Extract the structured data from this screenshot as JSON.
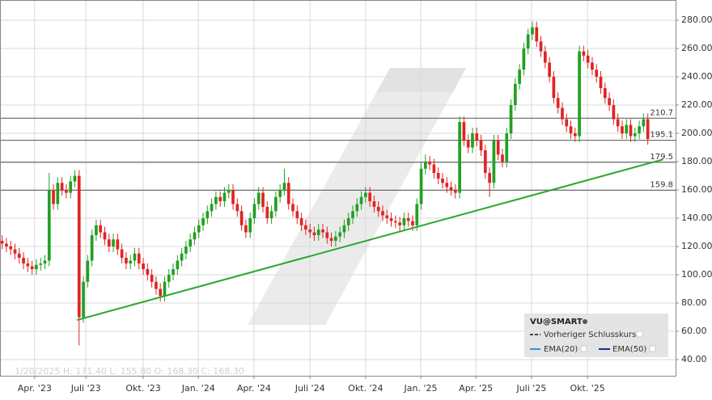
{
  "chart_data": {
    "type": "candlestick",
    "up_color": "#22a022",
    "down_color": "#e02424",
    "open": [
      124,
      122,
      120,
      118,
      115,
      112,
      108,
      106,
      104,
      107,
      108,
      110,
      160,
      150,
      165,
      160,
      158,
      166,
      170,
      70,
      95,
      110,
      128,
      135,
      130,
      125,
      120,
      125,
      118,
      112,
      108,
      110,
      115,
      108,
      104,
      100,
      95,
      90,
      85,
      95,
      100,
      104,
      110,
      115,
      120,
      125,
      130,
      135,
      140,
      145,
      150,
      155,
      152,
      158,
      160,
      150,
      145,
      135,
      130,
      140,
      150,
      158,
      148,
      140,
      145,
      155,
      160,
      165,
      150,
      145,
      140,
      135,
      132,
      130,
      128,
      132,
      130,
      126,
      124,
      127,
      130,
      135,
      140,
      145,
      150,
      155,
      158,
      152,
      148,
      145,
      142,
      140,
      138,
      137,
      135,
      140,
      138,
      135,
      150,
      175,
      180,
      178,
      172,
      168,
      165,
      162,
      160,
      158,
      208,
      195,
      190,
      200,
      195,
      188,
      172,
      165,
      195,
      185,
      180,
      200,
      220,
      235,
      245,
      260,
      270,
      275,
      265,
      258,
      250,
      240,
      225,
      218,
      210,
      205,
      200,
      198,
      258,
      255,
      250,
      245,
      240,
      232,
      225,
      220,
      210,
      205,
      200,
      206,
      198,
      200,
      205,
      210
    ],
    "high": [
      128,
      126,
      124,
      122,
      119,
      116,
      112,
      110,
      111,
      112,
      114,
      172,
      164,
      169,
      169,
      164,
      170,
      174,
      174,
      99,
      114,
      132,
      139,
      139,
      134,
      129,
      129,
      129,
      122,
      116,
      114,
      119,
      119,
      112,
      108,
      104,
      99,
      94,
      99,
      104,
      108,
      114,
      119,
      124,
      129,
      134,
      139,
      144,
      149,
      154,
      159,
      159,
      162,
      164,
      164,
      154,
      149,
      139,
      144,
      154,
      162,
      162,
      152,
      149,
      159,
      164,
      175,
      169,
      154,
      149,
      144,
      139,
      136,
      134,
      136,
      136,
      134,
      130,
      131,
      134,
      139,
      144,
      149,
      154,
      159,
      162,
      162,
      156,
      152,
      149,
      146,
      144,
      142,
      141,
      144,
      144,
      142,
      154,
      179,
      185,
      184,
      182,
      176,
      172,
      169,
      166,
      164,
      212,
      212,
      199,
      204,
      204,
      199,
      192,
      176,
      199,
      199,
      189,
      204,
      224,
      239,
      249,
      264,
      274,
      279,
      279,
      269,
      262,
      254,
      244,
      229,
      222,
      214,
      209,
      204,
      262,
      262,
      259,
      254,
      249,
      244,
      236,
      229,
      224,
      214,
      209,
      210,
      210,
      204,
      209,
      214,
      214
    ],
    "low": [
      118,
      116,
      114,
      111,
      108,
      104,
      102,
      100,
      100,
      103,
      104,
      106,
      146,
      146,
      156,
      154,
      154,
      162,
      50,
      66,
      91,
      106,
      124,
      126,
      121,
      116,
      116,
      114,
      108,
      104,
      104,
      106,
      104,
      100,
      96,
      91,
      86,
      81,
      81,
      91,
      96,
      100,
      106,
      111,
      116,
      121,
      126,
      131,
      136,
      141,
      146,
      148,
      148,
      154,
      146,
      141,
      131,
      126,
      126,
      136,
      146,
      144,
      136,
      136,
      141,
      151,
      156,
      146,
      141,
      136,
      131,
      128,
      126,
      124,
      124,
      126,
      122,
      120,
      120,
      123,
      126,
      131,
      136,
      141,
      146,
      151,
      148,
      144,
      141,
      138,
      136,
      134,
      133,
      131,
      131,
      134,
      131,
      131,
      146,
      171,
      174,
      168,
      164,
      161,
      158,
      156,
      154,
      154,
      191,
      186,
      186,
      191,
      184,
      168,
      155,
      161,
      181,
      176,
      176,
      196,
      216,
      231,
      241,
      256,
      266,
      261,
      254,
      246,
      236,
      221,
      214,
      206,
      201,
      196,
      194,
      194,
      251,
      246,
      241,
      236,
      228,
      221,
      216,
      206,
      201,
      196,
      196,
      194,
      194,
      196,
      201,
      192
    ],
    "close": [
      122,
      120,
      118,
      115,
      112,
      108,
      106,
      104,
      107,
      108,
      110,
      160,
      150,
      165,
      160,
      158,
      166,
      170,
      70,
      95,
      110,
      128,
      135,
      130,
      125,
      120,
      125,
      118,
      112,
      108,
      110,
      115,
      108,
      104,
      100,
      95,
      90,
      85,
      95,
      100,
      104,
      110,
      115,
      120,
      125,
      130,
      135,
      140,
      145,
      150,
      155,
      152,
      158,
      160,
      150,
      145,
      135,
      130,
      140,
      150,
      158,
      148,
      140,
      145,
      155,
      160,
      165,
      150,
      145,
      140,
      135,
      132,
      130,
      128,
      132,
      130,
      126,
      124,
      127,
      130,
      135,
      140,
      145,
      150,
      155,
      158,
      152,
      148,
      145,
      142,
      140,
      138,
      137,
      135,
      140,
      138,
      135,
      150,
      175,
      180,
      178,
      172,
      168,
      165,
      162,
      160,
      158,
      208,
      195,
      190,
      200,
      195,
      188,
      172,
      165,
      195,
      185,
      180,
      200,
      220,
      235,
      245,
      260,
      270,
      275,
      265,
      258,
      250,
      240,
      225,
      218,
      210,
      205,
      200,
      198,
      258,
      255,
      250,
      245,
      240,
      232,
      225,
      220,
      210,
      205,
      200,
      206,
      198,
      200,
      205,
      210,
      196
    ],
    "xlim": [
      -0.5,
      157.5
    ],
    "xticks": [
      {
        "value": 7.6,
        "label": "Apr. '23"
      },
      {
        "value": 19.6,
        "label": "Juli '23"
      },
      {
        "value": 33.0,
        "label": "Okt. '23"
      },
      {
        "value": 45.9,
        "label": "Jan. '24"
      },
      {
        "value": 58.9,
        "label": "Apr. '24"
      },
      {
        "value": 72.0,
        "label": "Juli '24"
      },
      {
        "value": 85.0,
        "label": "Okt. '24"
      },
      {
        "value": 97.9,
        "label": "Jan. '25"
      },
      {
        "value": 110.8,
        "label": "Apr. '25"
      },
      {
        "value": 123.8,
        "label": "Juli '25"
      },
      {
        "value": 136.9,
        "label": "Okt. '25"
      }
    ],
    "ylim": [
      28.6,
      294.3
    ],
    "yticks": [
      {
        "value": 40,
        "label": "40.00"
      },
      {
        "value": 60,
        "label": "60.00"
      },
      {
        "value": 80,
        "label": "80.00"
      },
      {
        "value": 100,
        "label": "100.00"
      },
      {
        "value": 120,
        "label": "120.00"
      },
      {
        "value": 140,
        "label": "140.00"
      },
      {
        "value": 160,
        "label": "160.00"
      },
      {
        "value": 180,
        "label": "180.00"
      },
      {
        "value": 200,
        "label": "200.00"
      },
      {
        "value": 220,
        "label": "220.00"
      },
      {
        "value": 240,
        "label": "240.00"
      },
      {
        "value": 260,
        "label": "260.00"
      },
      {
        "value": 280,
        "label": "280.00"
      }
    ],
    "grid": true,
    "levels": [
      210.7,
      195.1,
      179.5,
      159.8
    ],
    "trendline": {
      "x": [
        17.5,
        154.5
      ],
      "y": [
        68,
        181.5
      ],
      "color": "#2aa82a"
    },
    "overlay_text": "1/20/2025  H: 171.40  L: 155.80  O: 168.30  C: 168.30",
    "legend": {
      "title": "VU@SMART",
      "items": [
        {
          "name": "Vorheriger Schlusskurs",
          "color": "#444444"
        },
        {
          "name": "EMA(20)",
          "color": "#3a8fd8"
        },
        {
          "name": "EMA(50)",
          "color": "#1a2aa0"
        }
      ]
    }
  }
}
